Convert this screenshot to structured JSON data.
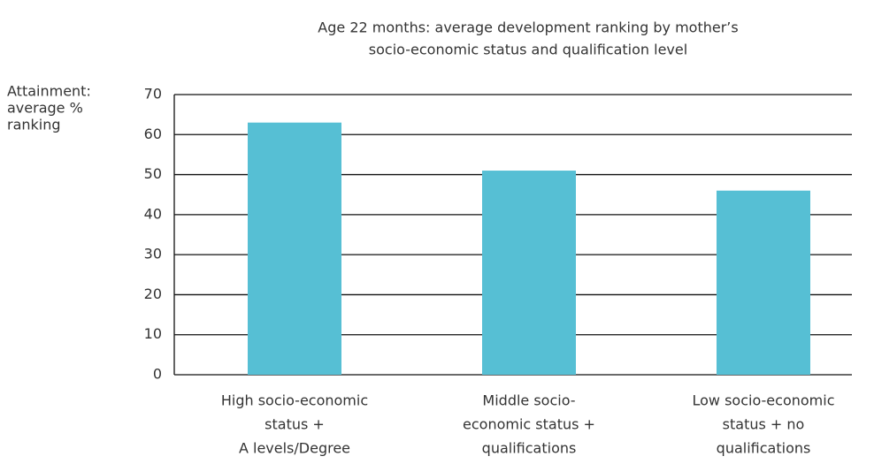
{
  "chart_data": {
    "type": "bar",
    "title": [
      "Age 22 months: average development ranking by mother’s",
      "socio-economic status and qualification level"
    ],
    "y_label": [
      "Attainment:",
      "average %",
      "ranking"
    ],
    "categories": [
      [
        "High socio-economic",
        "status +",
        "A levels/Degree"
      ],
      [
        "Middle socio-",
        "economic status +",
        "qualifications"
      ],
      [
        "Low socio-economic",
        "status + no",
        "qualifications"
      ]
    ],
    "values": [
      63,
      51,
      46
    ],
    "color": "#56bfd4",
    "ylim": [
      0,
      70
    ],
    "yticks": [
      0,
      10,
      20,
      30,
      40,
      50,
      60,
      70
    ],
    "grid": true
  }
}
